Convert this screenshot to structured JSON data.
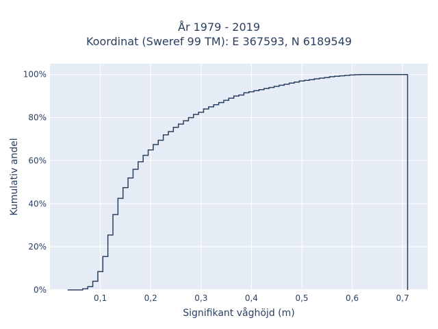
{
  "chart_data": {
    "type": "line",
    "title_line1": "År 1979 - 2019",
    "title_line2": "Koordinat (Sweref 99 TM): E 367593, N 6189549",
    "xlabel": "Signifikant våghöjd (m)",
    "ylabel": "Kumulativ andel",
    "xlim": [
      0.0,
      0.75
    ],
    "ylim": [
      0,
      105
    ],
    "x_ticks": [
      0.1,
      0.2,
      0.3,
      0.4,
      0.5,
      0.6,
      0.7
    ],
    "x_tick_labels": [
      "0,1",
      "0,2",
      "0,3",
      "0,4",
      "0,5",
      "0,6",
      "0,7"
    ],
    "y_ticks": [
      0,
      20,
      40,
      60,
      80,
      100
    ],
    "y_tick_labels": [
      "0%",
      "20%",
      "40%",
      "60%",
      "80%",
      "100%"
    ],
    "grid": true,
    "series": [
      {
        "color": "#2a3f5f",
        "x": [
          0.035,
          0.065,
          0.075,
          0.085,
          0.095,
          0.105,
          0.115,
          0.125,
          0.135,
          0.145,
          0.155,
          0.165,
          0.175,
          0.185,
          0.195,
          0.205,
          0.215,
          0.225,
          0.235,
          0.245,
          0.255,
          0.265,
          0.275,
          0.285,
          0.295,
          0.305,
          0.315,
          0.325,
          0.335,
          0.345,
          0.355,
          0.365,
          0.375,
          0.385,
          0.395,
          0.405,
          0.415,
          0.425,
          0.435,
          0.445,
          0.455,
          0.465,
          0.475,
          0.485,
          0.495,
          0.505,
          0.515,
          0.525,
          0.535,
          0.545,
          0.555,
          0.565,
          0.575,
          0.585,
          0.595,
          0.605,
          0.615,
          0.625,
          0.635,
          0.71
        ],
        "y": [
          0,
          0.5,
          1.5,
          4,
          8.5,
          15.5,
          25.5,
          35,
          42.5,
          47.5,
          52,
          56,
          59.5,
          62.5,
          65,
          67.5,
          69.5,
          72,
          73.5,
          75.5,
          77,
          78.5,
          80,
          81.5,
          82.5,
          84,
          85,
          86,
          87,
          88,
          89,
          90,
          90.5,
          91.5,
          92,
          92.5,
          93,
          93.5,
          94,
          94.5,
          95,
          95.5,
          96,
          96.5,
          97,
          97.3,
          97.6,
          98,
          98.3,
          98.6,
          99,
          99.2,
          99.4,
          99.6,
          99.8,
          99.9,
          100,
          100,
          100,
          0
        ]
      }
    ]
  }
}
